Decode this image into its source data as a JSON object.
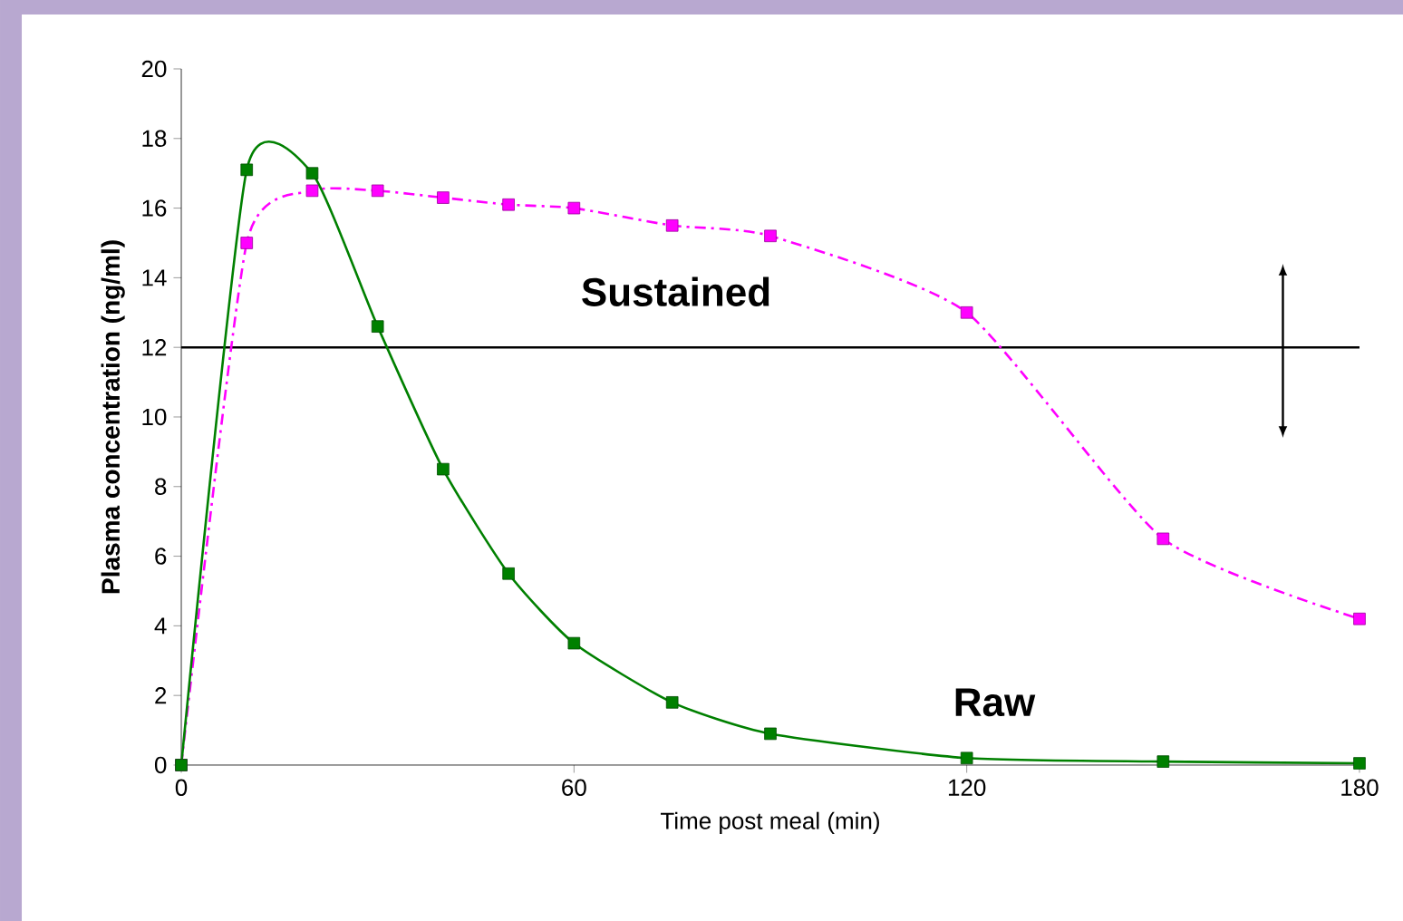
{
  "chart_data": {
    "type": "line",
    "xlabel": "Time post meal (min)",
    "ylabel": "Plasma concentration (ng/ml)",
    "xlim": [
      0,
      180
    ],
    "xticks": [
      0,
      60,
      120,
      180
    ],
    "ylim": [
      0,
      20
    ],
    "yticks": [
      0,
      2,
      4,
      6,
      8,
      10,
      12,
      14,
      16,
      18,
      20
    ],
    "grid": false,
    "marker": "square",
    "ref_lines": [
      {
        "axis": "y",
        "value": 12,
        "color": "#000000"
      }
    ],
    "series": [
      {
        "name": "Sustained",
        "color": "#ff00ff",
        "line_style": "dashed",
        "x": [
          0,
          10,
          20,
          30,
          40,
          50,
          60,
          75,
          90,
          120,
          150,
          180
        ],
        "values": [
          0,
          15.0,
          16.5,
          16.5,
          16.3,
          16.1,
          16.0,
          15.5,
          15.2,
          13.0,
          6.5,
          4.2
        ]
      },
      {
        "name": "Raw",
        "color": "#008000",
        "line_style": "solid",
        "x": [
          0,
          10,
          20,
          30,
          40,
          50,
          60,
          75,
          90,
          120,
          150,
          180
        ],
        "values": [
          0,
          17.1,
          17.0,
          12.6,
          8.5,
          5.5,
          3.5,
          1.8,
          0.9,
          0.2,
          0.1,
          0.05
        ]
      }
    ]
  }
}
